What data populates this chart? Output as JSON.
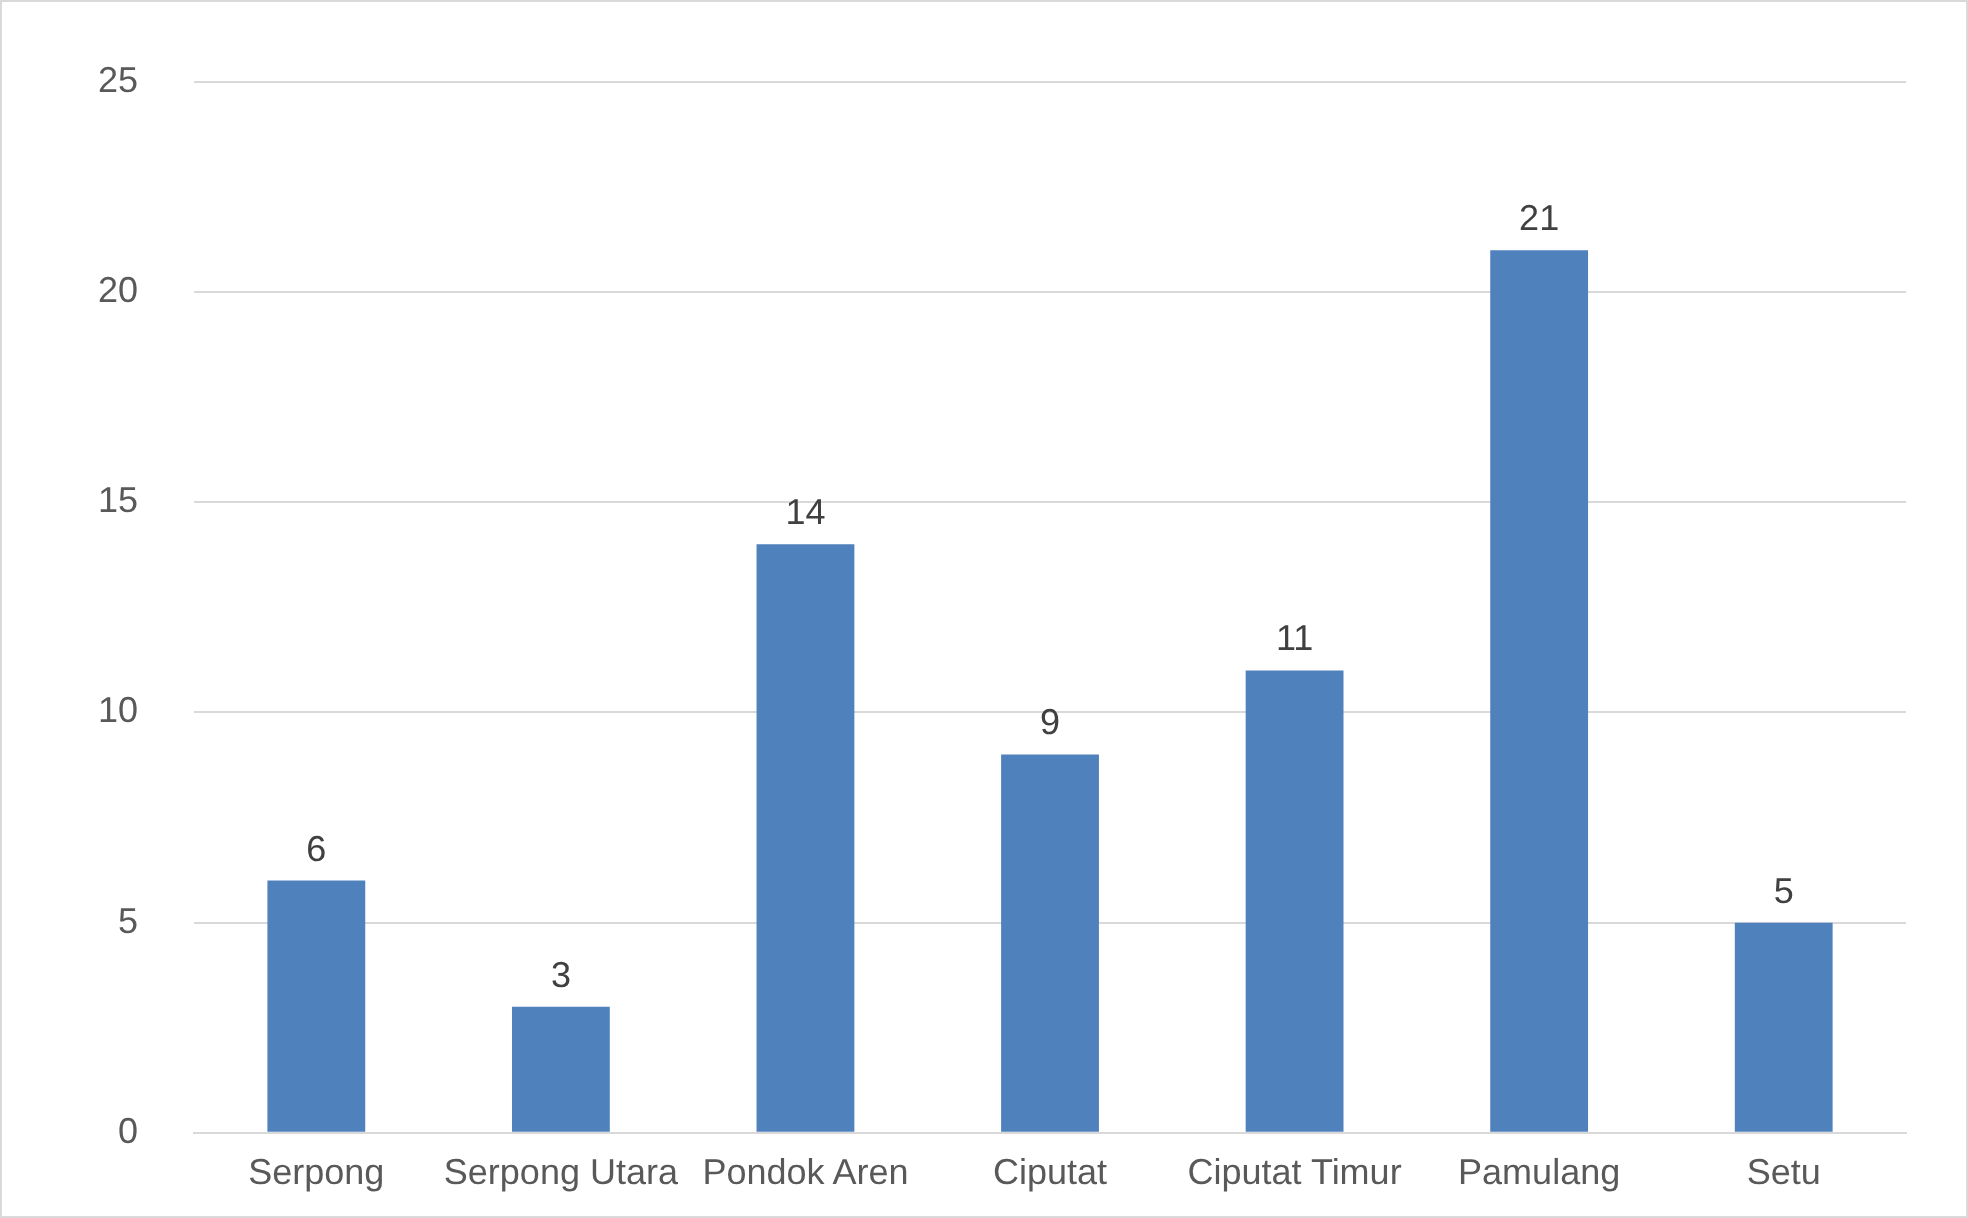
{
  "chart_data": {
    "type": "bar",
    "categories": [
      "Serpong",
      "Serpong Utara",
      "Pondok Aren",
      "Ciputat",
      "Ciputat Timur",
      "Pamulang",
      "Setu"
    ],
    "values": [
      6,
      3,
      14,
      9,
      11,
      21,
      5
    ],
    "color": "#4f81bd",
    "ylim": [
      0,
      25
    ],
    "yticks": [
      0,
      5,
      10,
      15,
      20,
      25
    ],
    "grid": "y",
    "data_labels": true,
    "legend": false
  }
}
